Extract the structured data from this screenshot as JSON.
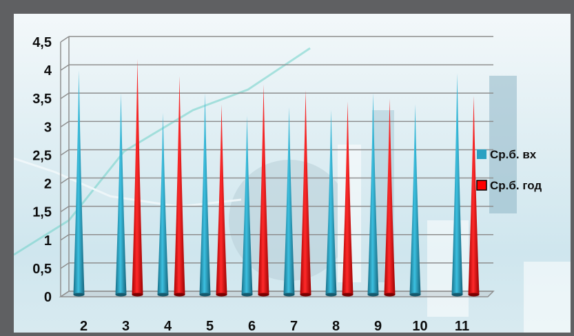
{
  "chart_data": {
    "type": "bar",
    "title": "",
    "xlabel": "",
    "ylabel": "",
    "categories": [
      "2",
      "3",
      "4",
      "5",
      "6",
      "7",
      "8",
      "9",
      "10",
      "11"
    ],
    "ylim": [
      0,
      4.5
    ],
    "yticks": [
      "0",
      "0,5",
      "1",
      "1,5",
      "2",
      "2,5",
      "3",
      "3,5",
      "4",
      "4,5"
    ],
    "grid": true,
    "legend_position": "right",
    "series": [
      {
        "name": "Ср.б. вх",
        "color": "#2aa1c2",
        "values": [
          4.0,
          3.6,
          3.25,
          3.6,
          3.2,
          3.35,
          3.3,
          3.6,
          3.4,
          3.95
        ]
      },
      {
        "name": "Ср.б. год",
        "color": "#ff0000",
        "values": [
          null,
          4.2,
          3.9,
          3.4,
          3.75,
          3.65,
          3.45,
          3.5,
          null,
          3.55
        ]
      }
    ]
  },
  "colors": {
    "frame": "#5f6062",
    "grid": "#8e8e8e",
    "text": "#0d0d0d"
  }
}
